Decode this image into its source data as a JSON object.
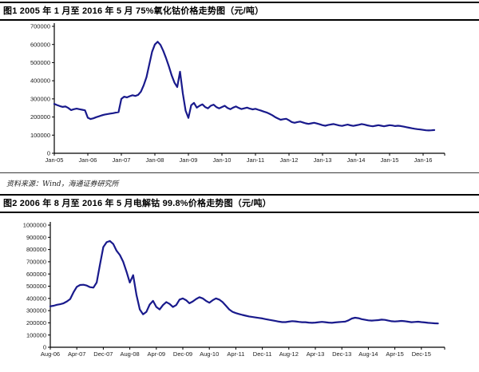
{
  "figure1": {
    "title": "图1  2005 年 1 月至 2016 年 5 月 75%氧化钴价格走势图（元/吨）"
  },
  "figure2": {
    "title": "图2  2006 年 8 月至 2016 年 5 月电解钴 99.8%价格走势图（元/吨）"
  },
  "source": {
    "text": "资料来源：Wind，海通证券研究所"
  },
  "chart_data": [
    {
      "type": "line",
      "title": "2005年1月至2016年5月 75%氧化钴价格走势图（元/吨）",
      "series_name": "75%氧化钴价格",
      "x_start": "Jan-05",
      "x_end": "May-16",
      "x_frequency": "monthly",
      "x_tick_labels": [
        "Jan-05",
        "Jan-06",
        "Jan-07",
        "Jan-08",
        "Jan-09",
        "Jan-10",
        "Jan-11",
        "Jan-12",
        "Jan-13",
        "Jan-14",
        "Jan-15",
        "Jan-16"
      ],
      "x_tick_every_months": 12,
      "ylim": [
        0,
        700000
      ],
      "ytick_step": 100000,
      "grid": false,
      "legend_position": "none",
      "line_color": "#191A8C",
      "values": [
        272000,
        266000,
        260000,
        256000,
        258000,
        250000,
        238000,
        243000,
        246000,
        243000,
        240000,
        237000,
        196000,
        189000,
        193000,
        199000,
        204000,
        209000,
        213000,
        216000,
        219000,
        221000,
        224000,
        227000,
        300000,
        312000,
        308000,
        315000,
        320000,
        316000,
        322000,
        340000,
        375000,
        420000,
        490000,
        560000,
        600000,
        615000,
        598000,
        565000,
        525000,
        480000,
        430000,
        390000,
        365000,
        450000,
        330000,
        235000,
        195000,
        265000,
        278000,
        252000,
        262000,
        270000,
        255000,
        248000,
        262000,
        268000,
        255000,
        248000,
        255000,
        262000,
        250000,
        243000,
        252000,
        258000,
        250000,
        244000,
        248000,
        252000,
        246000,
        242000,
        245000,
        240000,
        235000,
        230000,
        225000,
        218000,
        210000,
        200000,
        192000,
        185000,
        188000,
        190000,
        182000,
        172000,
        168000,
        172000,
        175000,
        170000,
        165000,
        162000,
        165000,
        168000,
        164000,
        160000,
        155000,
        152000,
        156000,
        159000,
        161000,
        157000,
        153000,
        151000,
        155000,
        158000,
        154000,
        151000,
        154000,
        157000,
        161000,
        158000,
        154000,
        151000,
        149000,
        152000,
        155000,
        152000,
        149000,
        152000,
        155000,
        153000,
        150000,
        152000,
        150000,
        147000,
        144000,
        141000,
        138000,
        135000,
        133000,
        131000,
        129000,
        127000,
        126000,
        127000,
        128000
      ]
    },
    {
      "type": "line",
      "title": "2006年8月至2016年5月电解钴99.8%价格走势图（元/吨）",
      "series_name": "电解钴99.8%价格",
      "x_start": "Aug-06",
      "x_end": "May-16",
      "x_frequency": "monthly",
      "x_tick_labels": [
        "Aug-06",
        "Apr-07",
        "Dec-07",
        "Aug-08",
        "Apr-09",
        "Dec-09",
        "Aug-10",
        "Apr-11",
        "Dec-11",
        "Aug-12",
        "Apr-13",
        "Dec-13",
        "Aug-14",
        "Apr-15",
        "Dec-15"
      ],
      "x_tick_every_months": 8,
      "ylim": [
        0,
        1000000
      ],
      "ytick_step": 100000,
      "grid": false,
      "legend_position": "none",
      "line_color": "#191A8C",
      "values": [
        335000,
        340000,
        348000,
        352000,
        360000,
        375000,
        395000,
        450000,
        495000,
        510000,
        512000,
        505000,
        492000,
        488000,
        530000,
        680000,
        820000,
        860000,
        870000,
        845000,
        790000,
        755000,
        700000,
        620000,
        530000,
        590000,
        430000,
        310000,
        270000,
        290000,
        350000,
        380000,
        330000,
        310000,
        345000,
        370000,
        355000,
        330000,
        345000,
        390000,
        400000,
        385000,
        360000,
        375000,
        395000,
        410000,
        400000,
        380000,
        365000,
        385000,
        400000,
        390000,
        370000,
        340000,
        310000,
        290000,
        280000,
        272000,
        265000,
        258000,
        252000,
        248000,
        244000,
        240000,
        236000,
        230000,
        225000,
        220000,
        215000,
        210000,
        206000,
        206000,
        210000,
        214000,
        212000,
        208000,
        205000,
        205000,
        202000,
        200000,
        202000,
        205000,
        208000,
        205000,
        202000,
        200000,
        203000,
        206000,
        208000,
        210000,
        220000,
        235000,
        242000,
        238000,
        230000,
        225000,
        220000,
        218000,
        220000,
        222000,
        226000,
        224000,
        218000,
        213000,
        211000,
        213000,
        216000,
        213000,
        209000,
        205000,
        207000,
        209000,
        206000,
        203000,
        200000,
        198000,
        196000,
        195000
      ]
    }
  ]
}
